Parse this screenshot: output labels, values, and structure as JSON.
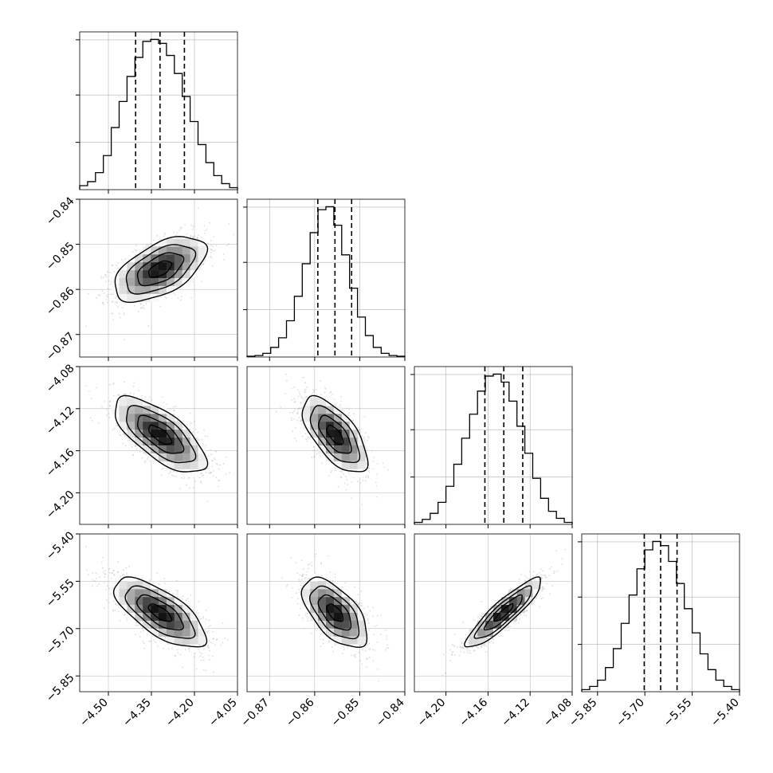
{
  "chart_data": {
    "type": "corner",
    "grid": true,
    "colors": {
      "line": "#000000",
      "points": "#9a9a9a",
      "grid": "#b0b0b0",
      "fill_dark": "#000000",
      "fill_light": "#ffffff"
    },
    "params": [
      {
        "range": [
          -4.6,
          -4.05
        ],
        "ticks": [
          -4.5,
          -4.35,
          -4.2,
          -4.05
        ],
        "tick_labels": [
          "−4.50",
          "−4.35",
          "−4.20",
          "−4.05"
        ],
        "mean": -4.32,
        "sd": 0.08,
        "quantiles": [
          -4.405,
          -4.32,
          -4.235
        ],
        "hist": [
          0.4,
          0.8,
          1.7,
          3.4,
          6.2,
          8.8,
          11.3,
          13.2,
          14.8,
          15.0,
          14.6,
          13.4,
          11.6,
          9.3,
          6.8,
          4.5,
          2.7,
          1.4,
          0.6,
          0.2
        ]
      },
      {
        "range": [
          -0.875,
          -0.84
        ],
        "ticks": [
          -0.87,
          -0.86,
          -0.85,
          -0.84
        ],
        "tick_labels": [
          "−0.87",
          "−0.86",
          "−0.85",
          "−0.84"
        ],
        "mean": -0.8555,
        "sd": 0.0036,
        "quantiles": [
          -0.8593,
          -0.8555,
          -0.8518
        ],
        "hist": [
          0.1,
          0.2,
          0.5,
          1.3,
          2.6,
          4.9,
          8.2,
          12.6,
          16.8,
          19.9,
          20.3,
          17.8,
          13.8,
          9.3,
          5.4,
          2.9,
          1.3,
          0.5,
          0.2,
          0.1
        ]
      },
      {
        "range": [
          -4.23,
          -4.08
        ],
        "ticks": [
          -4.2,
          -4.16,
          -4.12,
          -4.08
        ],
        "tick_labels": [
          "−4.20",
          "−4.16",
          "−4.12",
          "−4.08"
        ],
        "mean": -4.145,
        "sd": 0.018,
        "quantiles": [
          -4.163,
          -4.145,
          -4.127
        ],
        "hist": [
          0.2,
          0.5,
          1.1,
          2.2,
          3.8,
          6.0,
          8.6,
          11.0,
          13.3,
          14.8,
          15.0,
          14.2,
          12.3,
          9.8,
          7.1,
          4.6,
          2.6,
          1.3,
          0.6,
          0.2
        ]
      },
      {
        "range": [
          -5.9,
          -5.4
        ],
        "ticks": [
          -5.85,
          -5.7,
          -5.55,
          -5.4
        ],
        "tick_labels": [
          "−5.85",
          "−5.70",
          "−5.55",
          "−5.40"
        ],
        "mean": -5.65,
        "sd": 0.055,
        "quantiles": [
          -5.702,
          -5.65,
          -5.598
        ],
        "hist": [
          0.2,
          0.5,
          1.1,
          2.3,
          4.1,
          6.5,
          9.2,
          11.7,
          13.5,
          14.3,
          13.9,
          12.4,
          10.3,
          7.9,
          5.6,
          3.6,
          2.1,
          1.1,
          0.5,
          0.2
        ]
      }
    ],
    "correlations": [
      [
        1,
        0.55,
        -0.7,
        -0.7
      ],
      [
        0.55,
        1,
        -0.65,
        -0.6
      ],
      [
        -0.7,
        -0.65,
        1,
        0.9
      ],
      [
        -0.7,
        -0.6,
        0.9,
        1
      ]
    ]
  }
}
